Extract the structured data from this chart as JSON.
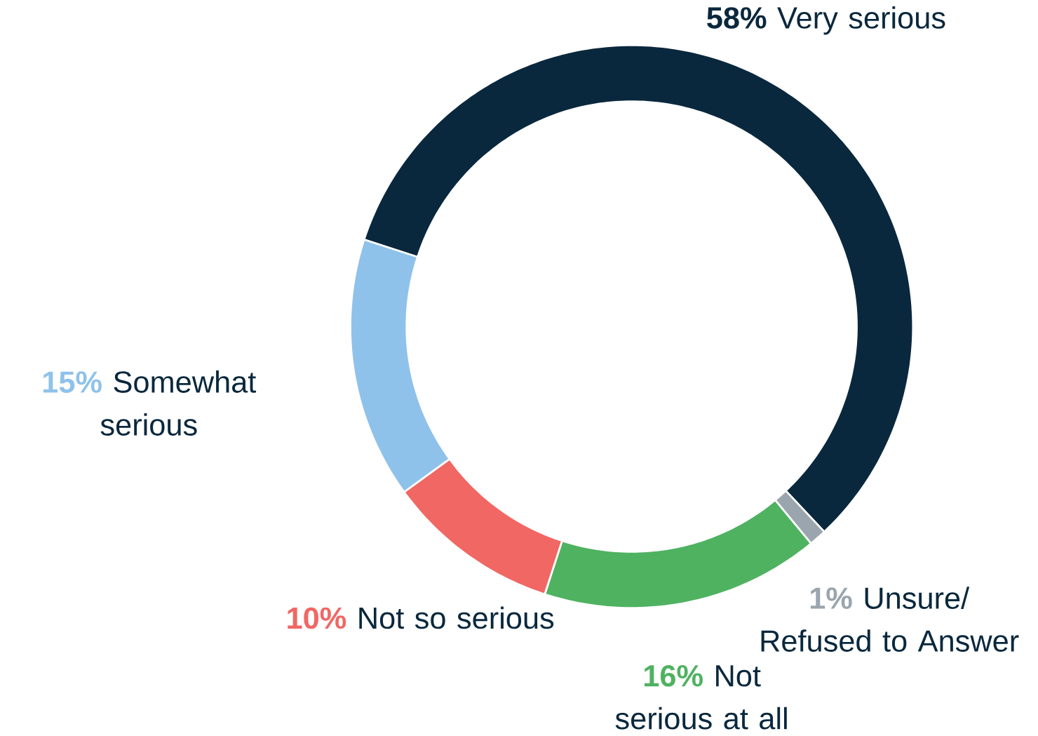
{
  "chart_data": {
    "type": "donut",
    "categories": [
      "Very serious",
      "Unsure/ Refused to Answer",
      "Not serious at all",
      "Not so serious",
      "Somewhat serious"
    ],
    "values": [
      58,
      1,
      16,
      10,
      15
    ],
    "value_labels": [
      "58%",
      "1%",
      "16%",
      "10%",
      "15%"
    ],
    "colors": [
      "#0a283d",
      "#9aa5ad",
      "#4fb261",
      "#f06764",
      "#8fc2ea"
    ]
  }
}
